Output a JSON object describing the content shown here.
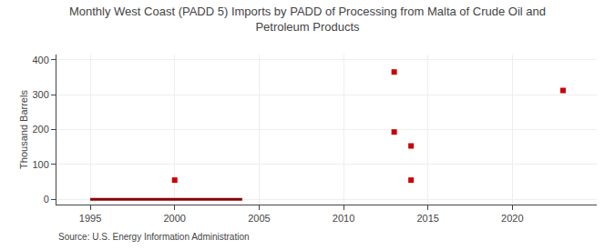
{
  "chart_data": {
    "type": "scatter",
    "title": "Monthly West Coast (PADD 5) Imports by PADD of Processing from Malta of Crude Oil and\nPetroleum Products",
    "ylabel": "Thousand Barrels",
    "annotations": [
      "Source: U.S. Energy Information Administration"
    ],
    "series": [
      {
        "type": "line",
        "color": "#8B0000",
        "line_style": "solid",
        "x": [
          1995,
          2004
        ],
        "values": [
          0,
          0
        ]
      },
      {
        "type": "scatter",
        "color": "#cc0000",
        "marker": "square",
        "x": [
          2000,
          2013,
          2013,
          2014,
          2014,
          2023
        ],
        "values": [
          55,
          193,
          365,
          153,
          55,
          312
        ]
      }
    ],
    "xlim": [
      1993,
      2025
    ],
    "xticks": [
      1995,
      2000,
      2005,
      2010,
      2015,
      2020
    ],
    "ylim": [
      -15,
      415
    ],
    "yticks": [
      0,
      100,
      200,
      300,
      400
    ],
    "grid": true
  }
}
